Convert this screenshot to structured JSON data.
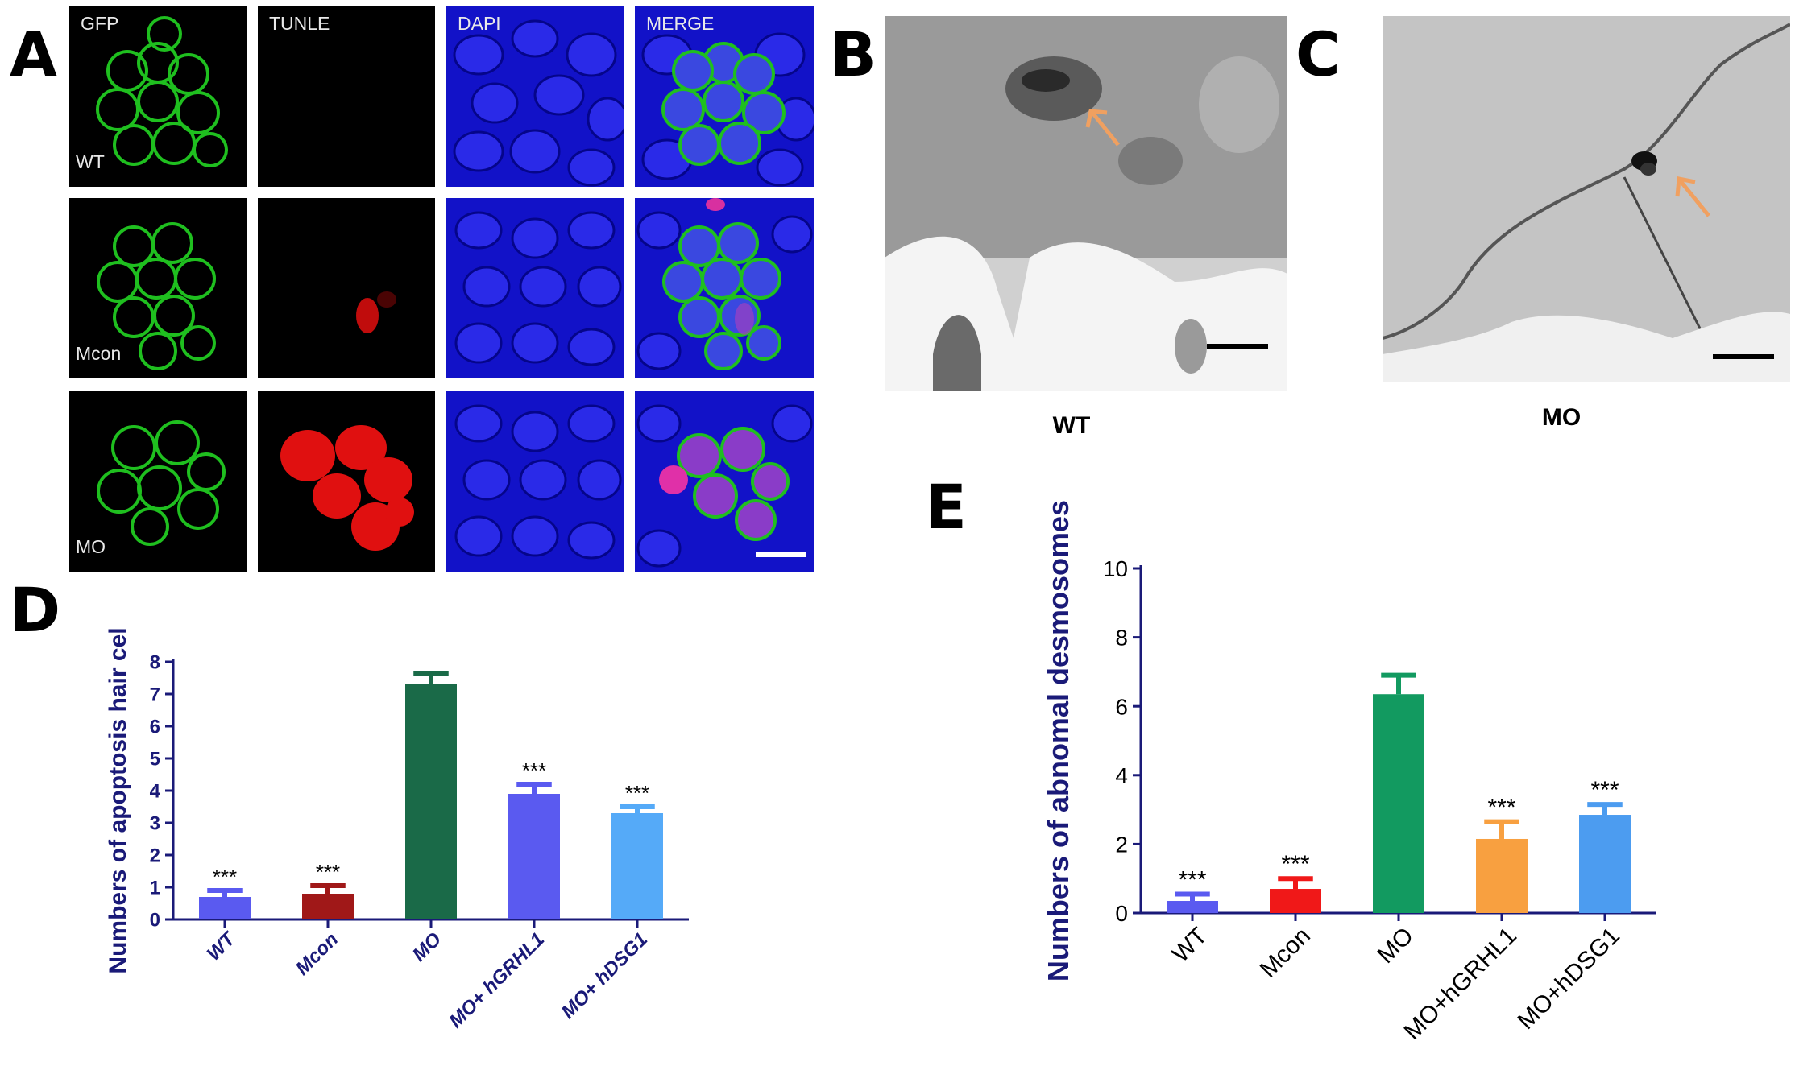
{
  "panels": {
    "A": "A",
    "B": "B",
    "C": "C",
    "D": "D",
    "E": "E"
  },
  "panel_a": {
    "columns": [
      "GFP",
      "TUNLE",
      "DAPI",
      "MERGE"
    ],
    "rows": [
      "WT",
      "Mcon",
      "MO"
    ]
  },
  "panel_b": {
    "caption": "WT"
  },
  "panel_c": {
    "caption": "MO"
  },
  "colors": {
    "gfp": "#1fbf1f",
    "tunel": "#e01010",
    "dapi": "#1a1ad8",
    "navy_axis": "#1a1a78",
    "arrow": "#f0a060"
  },
  "chart_data": [
    {
      "panel": "D",
      "type": "bar",
      "categories": [
        "WT",
        "Mcon",
        "MO",
        "MO+ hGRHL1",
        "MO+ hDSG1"
      ],
      "values": [
        0.7,
        0.8,
        7.3,
        3.9,
        3.3
      ],
      "errors": [
        0.2,
        0.25,
        0.35,
        0.3,
        0.2
      ],
      "annotations": [
        "***",
        "***",
        "",
        "***",
        "***"
      ],
      "bar_colors": [
        "#5a5af0",
        "#a01818",
        "#1a6a48",
        "#5a5af0",
        "#55aaf8"
      ],
      "ylabel": "Numbers of apoptosis hair cells",
      "xlabel": "",
      "ylim": [
        0,
        8
      ],
      "yticks": [
        "0",
        "1",
        "2",
        "3",
        "4",
        "5",
        "6",
        "7",
        "8"
      ],
      "grid": false
    },
    {
      "panel": "E",
      "type": "bar",
      "categories": [
        "WT",
        "Mcon",
        "MO",
        "MO+hGRHL1",
        "MO+hDSG1"
      ],
      "values": [
        0.35,
        0.7,
        6.35,
        2.15,
        2.85
      ],
      "errors": [
        0.2,
        0.3,
        0.55,
        0.5,
        0.3
      ],
      "annotations": [
        "***",
        "***",
        "",
        "***",
        "***"
      ],
      "bar_colors": [
        "#5a5af0",
        "#f01818",
        "#129a60",
        "#f8a040",
        "#4c9cf0"
      ],
      "ylabel": "Numbers of abnomal desmosomes",
      "xlabel": "",
      "ylim": [
        0,
        10
      ],
      "yticks": [
        "0",
        "2",
        "4",
        "6",
        "8",
        "10"
      ],
      "grid": false
    }
  ]
}
